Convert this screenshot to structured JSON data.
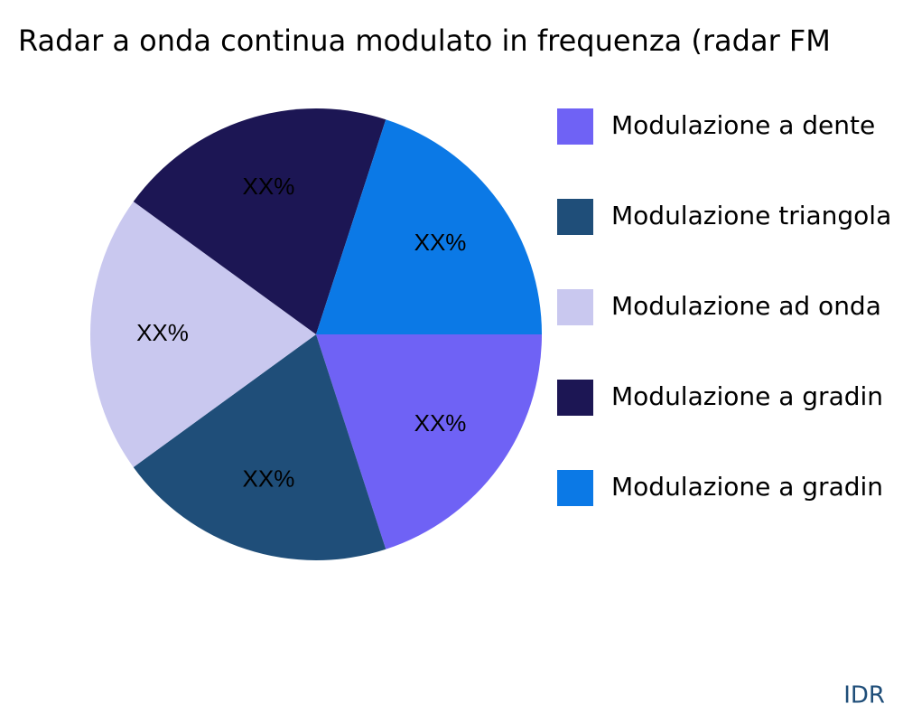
{
  "chart_data": {
    "type": "pie",
    "title": "Radar a onda continua modulato in frequenza (radar FM",
    "categories": [
      "Modulazione a dente",
      "Modulazione triangola",
      "Modulazione ad onda",
      "Modulazione a gradin",
      "Modulazione a gradin"
    ],
    "values": [
      20,
      20,
      20,
      20,
      20
    ],
    "value_labels": [
      "XX%",
      "XX%",
      "XX%",
      "XX%",
      "XX%"
    ],
    "colors": [
      "#6f62f5",
      "#1f4e79",
      "#c9c8ef",
      "#1c1654",
      "#0b79e6"
    ],
    "legend": "right",
    "watermark": "IDR"
  }
}
